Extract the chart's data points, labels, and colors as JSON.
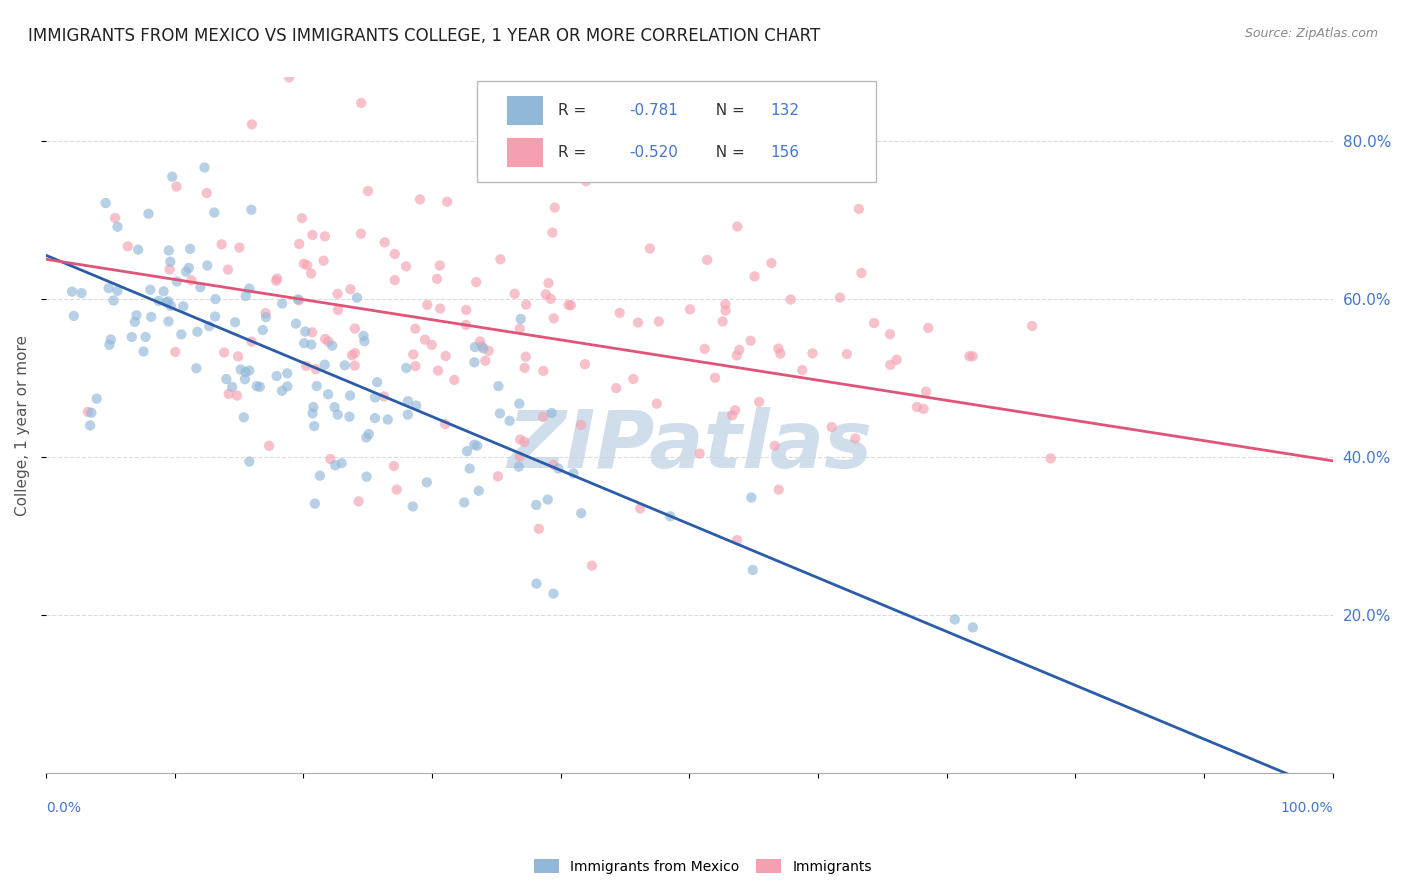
{
  "title": "IMMIGRANTS FROM MEXICO VS IMMIGRANTS COLLEGE, 1 YEAR OR MORE CORRELATION CHART",
  "source": "Source: ZipAtlas.com",
  "ylabel": "College, 1 year or more",
  "legend_label1": "Immigrants from Mexico",
  "legend_label2": "Immigrants",
  "r1": "-0.781",
  "n1": "132",
  "r2": "-0.520",
  "n2": "156",
  "blue_color": "#91B8D9",
  "pink_color": "#F4A0B0",
  "blue_line_color": "#2B5CA8",
  "pink_line_color": "#E05577",
  "tick_color": "#4477CC",
  "watermark_color": "#C8D8E8",
  "grid_color": "#CCCCCC",
  "title_color": "#222222",
  "source_color": "#888888",
  "ylabel_color": "#555555",
  "blue_intercept": 0.655,
  "blue_slope": -0.68,
  "pink_intercept": 0.65,
  "pink_slope": -0.255,
  "ylim_max": 0.88,
  "yticks": [
    0.2,
    0.4,
    0.6,
    0.8
  ],
  "ytick_labels": [
    "20.0%",
    "40.0%",
    "60.0%",
    "80.0%"
  ]
}
